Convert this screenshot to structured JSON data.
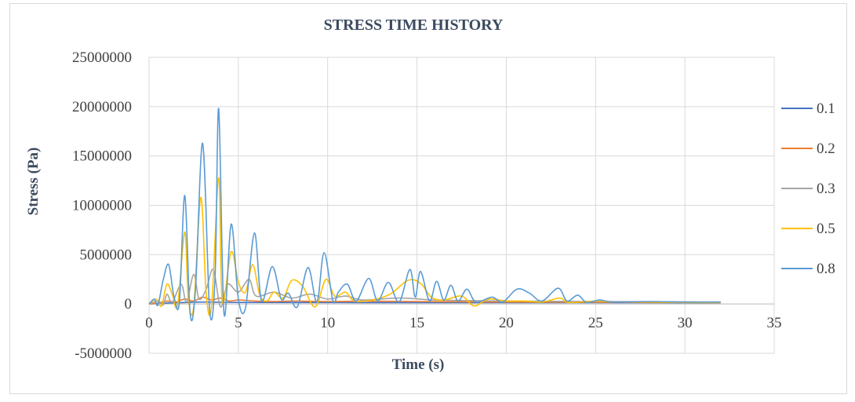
{
  "chart_data": {
    "type": "line",
    "title": "STRESS TIME HISTORY",
    "xlabel": "Time (s)",
    "ylabel": "Stress (Pa)",
    "xlim": [
      0,
      35
    ],
    "ylim": [
      -5000000,
      25000000
    ],
    "x_ticks": [
      0,
      5,
      10,
      15,
      20,
      25,
      30,
      35
    ],
    "y_ticks": [
      -5000000,
      0,
      5000000,
      10000000,
      15000000,
      20000000,
      25000000
    ],
    "x_tick_labels": [
      "0",
      "5",
      "10",
      "15",
      "20",
      "25",
      "30",
      "35"
    ],
    "y_tick_labels": [
      "-5000000",
      "0",
      "5000000",
      "10000000",
      "15000000",
      "20000000",
      "25000000"
    ],
    "grid": true,
    "legend_position": "right",
    "series": [
      {
        "name": "0.1",
        "color": "#4472c4",
        "points": [
          [
            0,
            0
          ],
          [
            1,
            100000
          ],
          [
            2,
            150000
          ],
          [
            3,
            200000
          ],
          [
            4,
            180000
          ],
          [
            5,
            160000
          ],
          [
            8,
            150000
          ],
          [
            12,
            140000
          ],
          [
            16,
            140000
          ],
          [
            20,
            130000
          ],
          [
            25,
            130000
          ],
          [
            32,
            120000
          ]
        ]
      },
      {
        "name": "0.2",
        "color": "#ed7d31",
        "points": [
          [
            0,
            0
          ],
          [
            0.5,
            100000
          ],
          [
            1,
            300000
          ],
          [
            1.5,
            200000
          ],
          [
            2,
            500000
          ],
          [
            2.5,
            300000
          ],
          [
            3,
            700000
          ],
          [
            3.5,
            400000
          ],
          [
            4,
            600000
          ],
          [
            4.5,
            300000
          ],
          [
            5,
            400000
          ],
          [
            6,
            300000
          ],
          [
            7,
            250000
          ],
          [
            8,
            300000
          ],
          [
            10,
            250000
          ],
          [
            12,
            280000
          ],
          [
            15,
            250000
          ],
          [
            18,
            220000
          ],
          [
            20,
            200000
          ],
          [
            25,
            180000
          ],
          [
            32,
            150000
          ]
        ]
      },
      {
        "name": "0.3",
        "color": "#a5a5a5",
        "points": [
          [
            0,
            0
          ],
          [
            0.5,
            300000
          ],
          [
            0.8,
            -100000
          ],
          [
            1,
            1000000
          ],
          [
            1.3,
            200000
          ],
          [
            1.8,
            2000000
          ],
          [
            2.1,
            200000
          ],
          [
            2.5,
            3000000
          ],
          [
            2.8,
            500000
          ],
          [
            3.2,
            1500000
          ],
          [
            3.6,
            3500000
          ],
          [
            4,
            -300000
          ],
          [
            4.4,
            2000000
          ],
          [
            5,
            1200000
          ],
          [
            5.6,
            2500000
          ],
          [
            6,
            800000
          ],
          [
            7,
            1200000
          ],
          [
            8,
            600000
          ],
          [
            9,
            1000000
          ],
          [
            10,
            500000
          ],
          [
            11,
            800000
          ],
          [
            12,
            400000
          ],
          [
            14,
            600000
          ],
          [
            16,
            400000
          ],
          [
            18,
            350000
          ],
          [
            20,
            300000
          ],
          [
            25,
            250000
          ],
          [
            32,
            200000
          ]
        ]
      },
      {
        "name": "0.5",
        "color": "#ffc000",
        "points": [
          [
            0,
            0
          ],
          [
            0.4,
            500000
          ],
          [
            0.7,
            -200000
          ],
          [
            1,
            2000000
          ],
          [
            1.3,
            1000000
          ],
          [
            1.6,
            -100000
          ],
          [
            2,
            7300000
          ],
          [
            2.2,
            500000
          ],
          [
            2.5,
            -300000
          ],
          [
            2.9,
            10800000
          ],
          [
            3.2,
            1000000
          ],
          [
            3.5,
            -200000
          ],
          [
            3.9,
            12800000
          ],
          [
            4.1,
            200000
          ],
          [
            4.6,
            5300000
          ],
          [
            5,
            2200000
          ],
          [
            5.4,
            1200000
          ],
          [
            5.8,
            4000000
          ],
          [
            6.2,
            900000
          ],
          [
            6.6,
            300000
          ],
          [
            7,
            1200000
          ],
          [
            7.5,
            600000
          ],
          [
            8,
            2400000
          ],
          [
            8.6,
            1800000
          ],
          [
            9.3,
            -300000
          ],
          [
            9.9,
            2500000
          ],
          [
            10.4,
            800000
          ],
          [
            11,
            1200000
          ],
          [
            11.5,
            300000
          ],
          [
            12.5,
            400000
          ],
          [
            13.5,
            1000000
          ],
          [
            14.5,
            2400000
          ],
          [
            15.2,
            2100000
          ],
          [
            15.8,
            700000
          ],
          [
            16.5,
            400000
          ],
          [
            17.5,
            800000
          ],
          [
            18.2,
            -200000
          ],
          [
            19,
            500000
          ],
          [
            20,
            300000
          ],
          [
            21,
            300000
          ],
          [
            22,
            200000
          ],
          [
            23,
            600000
          ],
          [
            23.5,
            150000
          ],
          [
            25,
            300000
          ],
          [
            26,
            200000
          ],
          [
            28,
            200000
          ],
          [
            30,
            150000
          ],
          [
            32,
            150000
          ]
        ]
      },
      {
        "name": "0.8",
        "color": "#5b9bd5",
        "points": [
          [
            0,
            0
          ],
          [
            0.3,
            500000
          ],
          [
            0.5,
            -100000
          ],
          [
            0.8,
            2500000
          ],
          [
            1.1,
            4000000
          ],
          [
            1.4,
            700000
          ],
          [
            1.7,
            200000
          ],
          [
            2,
            11000000
          ],
          [
            2.3,
            -1000000
          ],
          [
            2.6,
            1500000
          ],
          [
            3,
            16300000
          ],
          [
            3.4,
            -800000
          ],
          [
            3.7,
            3000000
          ],
          [
            3.9,
            19800000
          ],
          [
            4.2,
            -1000000
          ],
          [
            4.6,
            8100000
          ],
          [
            5,
            500000
          ],
          [
            5.4,
            -400000
          ],
          [
            5.9,
            7200000
          ],
          [
            6.3,
            300000
          ],
          [
            6.9,
            3800000
          ],
          [
            7.4,
            500000
          ],
          [
            7.8,
            1100000
          ],
          [
            8.3,
            -300000
          ],
          [
            8.9,
            3700000
          ],
          [
            9.4,
            200000
          ],
          [
            9.8,
            5200000
          ],
          [
            10.3,
            300000
          ],
          [
            10.6,
            1200000
          ],
          [
            11.1,
            2000000
          ],
          [
            11.6,
            300000
          ],
          [
            12.3,
            2600000
          ],
          [
            12.8,
            300000
          ],
          [
            13.4,
            2200000
          ],
          [
            14,
            200000
          ],
          [
            14.6,
            3500000
          ],
          [
            14.9,
            700000
          ],
          [
            15.2,
            3300000
          ],
          [
            15.7,
            300000
          ],
          [
            16.1,
            2300000
          ],
          [
            16.5,
            400000
          ],
          [
            16.9,
            1900000
          ],
          [
            17.3,
            300000
          ],
          [
            17.8,
            1500000
          ],
          [
            18.3,
            200000
          ],
          [
            19.2,
            700000
          ],
          [
            19.8,
            200000
          ],
          [
            20.6,
            1500000
          ],
          [
            21.3,
            1100000
          ],
          [
            22,
            300000
          ],
          [
            22.9,
            1600000
          ],
          [
            23.4,
            300000
          ],
          [
            24,
            900000
          ],
          [
            24.5,
            150000
          ],
          [
            25.2,
            400000
          ],
          [
            26,
            200000
          ],
          [
            28,
            250000
          ],
          [
            30,
            200000
          ],
          [
            32,
            200000
          ]
        ]
      }
    ]
  }
}
